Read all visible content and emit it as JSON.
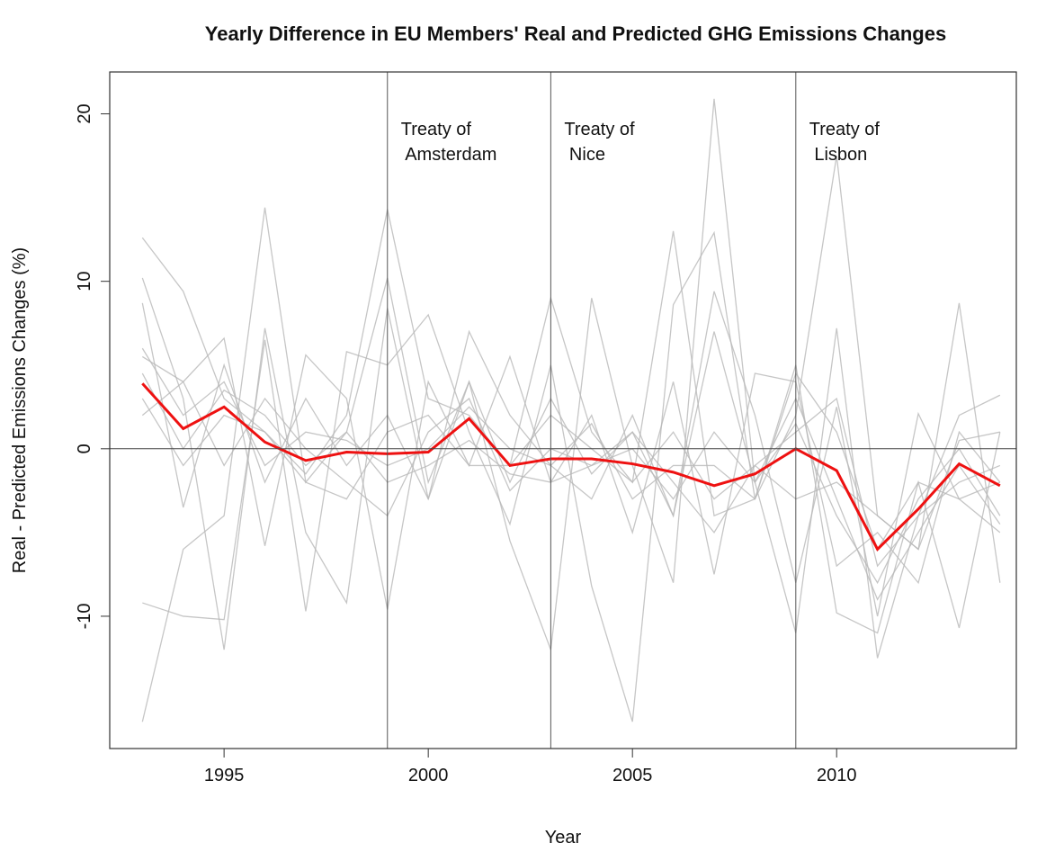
{
  "chart_data": {
    "type": "line",
    "title": "Yearly Difference in EU Members' Real and Predicted GHG Emissions Changes",
    "xlabel": "Year",
    "ylabel": "Real - Predicted Emissions Changes (%)",
    "x": [
      1993,
      1994,
      1995,
      1996,
      1997,
      1998,
      1999,
      2000,
      2001,
      2002,
      2003,
      2004,
      2005,
      2006,
      2007,
      2008,
      2009,
      2010,
      2011,
      2012,
      2013,
      2014
    ],
    "xlim": [
      1992.2,
      2014.4
    ],
    "ylim": [
      -17.9,
      22.5
    ],
    "xticks": [
      1995,
      2000,
      2005,
      2010
    ],
    "yticks": [
      -10,
      0,
      10,
      20
    ],
    "hline": 0,
    "events": [
      {
        "x": 1999,
        "lines": [
          "Treaty of",
          " Amsterdam"
        ]
      },
      {
        "x": 2003,
        "lines": [
          "Treaty of",
          " Nice"
        ]
      },
      {
        "x": 2009,
        "lines": [
          "Treaty of",
          " Lisbon"
        ]
      }
    ],
    "series": [
      {
        "color": "#b8b8b8",
        "values": [
          12.6,
          9.4,
          3.0,
          1.0,
          -1.5,
          2.0,
          14.3,
          3.0,
          2.0,
          -1.0,
          9.0,
          1.0,
          -2.0,
          13.0,
          -4.0,
          -3.0,
          2.0,
          17.5,
          -4.0,
          -6.0,
          8.7,
          -8.0
        ]
      },
      {
        "color": "#b8b8b8",
        "values": [
          -16.3,
          -6.0,
          -4.0,
          14.4,
          -2.0,
          1.0,
          10.2,
          -2.0,
          4.0,
          -5.5,
          -12.0,
          9.0,
          -1.0,
          -8.0,
          20.9,
          -2.0,
          -11.0,
          7.2,
          -12.5,
          -4.0,
          2.0,
          3.2
        ]
      },
      {
        "color": "#b8b8b8",
        "values": [
          -9.2,
          -10.0,
          -10.2,
          6.5,
          -9.7,
          5.8,
          5.0,
          8.0,
          1.0,
          -4.5,
          5.0,
          -8.2,
          -16.3,
          8.6,
          12.9,
          -3.0,
          5.0,
          -9.8,
          -11.0,
          -2.0,
          -10.7,
          1.0
        ]
      },
      {
        "color": "#b8b8b8",
        "values": [
          10.2,
          3.0,
          -12.0,
          7.2,
          -5.0,
          -9.2,
          8.4,
          -3.0,
          7.0,
          2.0,
          -1.0,
          -3.0,
          2.0,
          -4.0,
          9.4,
          2.0,
          -8.0,
          2.5,
          -10.0,
          2.1,
          -3.0,
          -5.0
        ]
      },
      {
        "color": "#b8b8b8",
        "values": [
          5.5,
          4.0,
          6.6,
          -5.8,
          5.6,
          3.0,
          -9.6,
          4.0,
          -1.0,
          5.5,
          -2.0,
          2.0,
          -5.0,
          4.0,
          -7.5,
          4.5,
          4.0,
          -7.0,
          -5.0,
          -8.0,
          1.0,
          -2.0
        ]
      },
      {
        "color": "#b8b8b8",
        "values": [
          8.7,
          -3.5,
          5.0,
          -2.0,
          3.0,
          -1.0,
          2.0,
          -3.0,
          4.0,
          -2.0,
          3.0,
          -1.5,
          1.0,
          -4.0,
          7.0,
          -2.0,
          3.0,
          -3.0,
          -9.0,
          -5.0,
          -1.0,
          -4.5
        ]
      },
      {
        "color": "#b8b8b8",
        "values": [
          3.0,
          -1.0,
          2.0,
          1.0,
          -2.0,
          -3.0,
          1.0,
          2.0,
          -1.0,
          -1.0,
          2.0,
          0.0,
          -2.0,
          1.0,
          -3.0,
          -1.0,
          1.0,
          3.0,
          -7.0,
          -4.0,
          -2.0,
          -1.0
        ]
      },
      {
        "color": "#b8b8b8",
        "values": [
          2.0,
          4.0,
          -1.0,
          3.0,
          0.0,
          -2.0,
          -4.0,
          1.0,
          3.0,
          -2.5,
          0.0,
          -1.0,
          1.0,
          -2.0,
          -5.0,
          -1.0,
          -3.0,
          -2.0,
          -4.0,
          -6.0,
          0.5,
          1.0
        ]
      },
      {
        "color": "#b8b8b8",
        "values": [
          6.0,
          2.0,
          4.0,
          -1.0,
          1.0,
          0.5,
          -1.0,
          0.0,
          2.5,
          0.0,
          -1.0,
          1.5,
          -3.0,
          -1.0,
          -1.0,
          -3.0,
          4.5,
          1.0,
          -6.0,
          -2.0,
          -3.0,
          -2.0
        ]
      },
      {
        "color": "#b8b8b8",
        "values": [
          4.5,
          0.0,
          3.5,
          2.0,
          -1.0,
          1.0,
          -2.0,
          -1.0,
          0.5,
          -1.5,
          -2.0,
          -1.0,
          0.0,
          -3.0,
          1.0,
          -2.0,
          1.5,
          -4.0,
          -8.0,
          -3.0,
          0.0,
          -4.0
        ]
      },
      {
        "color": "#ee1111",
        "width": 3,
        "values": [
          3.9,
          1.2,
          2.5,
          0.4,
          -0.7,
          -0.2,
          -0.3,
          -0.2,
          1.8,
          -1.0,
          -0.6,
          -0.6,
          -0.9,
          -1.4,
          -2.2,
          -1.5,
          0.0,
          -1.3,
          -6.0,
          -3.6,
          -0.9,
          -2.2
        ]
      }
    ]
  }
}
